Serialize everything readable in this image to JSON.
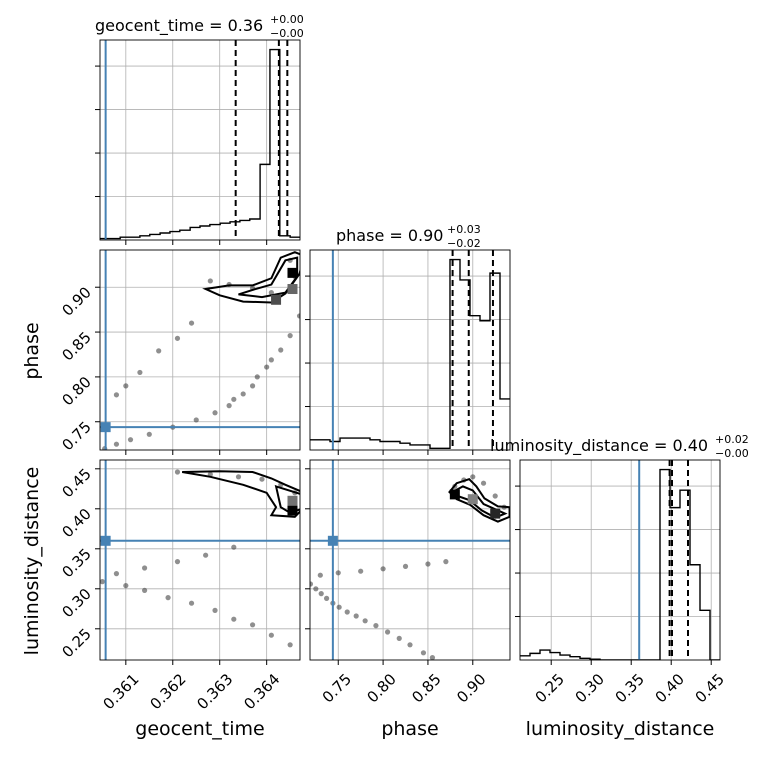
{
  "figure": {
    "titles": {
      "geocent_time": {
        "main": "geocent_time = 0.36",
        "sup": "+0.00",
        "sub": "−0.00"
      },
      "phase": {
        "main": "phase = 0.90",
        "sup": "+0.03",
        "sub": "−0.02"
      },
      "luminosity_distance": {
        "main": "luminosity_distance = 0.40",
        "sup": "+0.02",
        "sub": "−0.00"
      }
    },
    "axis_labels": {
      "geocent_time": "geocent_time",
      "phase": "phase",
      "luminosity_distance": "luminosity_distance"
    },
    "truth_color": "#4682b4"
  },
  "chart_data": {
    "type": "corner",
    "parameters": [
      {
        "name": "geocent_time",
        "range": [
          0.36045,
          0.36471
        ],
        "ticks": [
          0.361,
          0.362,
          0.363,
          0.364
        ],
        "tick_labels": [
          "0.361",
          "0.362",
          "0.363",
          "0.364"
        ],
        "truth": 0.36057,
        "quantiles": [
          0.36334,
          0.36426,
          0.36444
        ],
        "hist_edges": [
          0.36045,
          0.36066,
          0.36088,
          0.36109,
          0.3613,
          0.36151,
          0.36173,
          0.36194,
          0.36215,
          0.36237,
          0.36258,
          0.36279,
          0.36301,
          0.36322,
          0.36343,
          0.36364,
          0.36386,
          0.36407,
          0.36428,
          0.3645,
          0.36471
        ],
        "hist_counts": [
          1,
          1,
          2,
          2,
          3,
          4,
          5,
          6,
          7,
          9,
          10,
          11,
          12,
          13,
          14,
          15,
          54,
          136,
          3,
          2
        ]
      },
      {
        "name": "phase",
        "range": [
          0.7185,
          0.9415
        ],
        "ticks": [
          0.75,
          0.8,
          0.85,
          0.9
        ],
        "tick_labels": [
          "0.75",
          "0.80",
          "0.85",
          "0.90"
        ],
        "truth": 0.744,
        "quantiles": [
          0.8775,
          0.8955,
          0.9225
        ],
        "hist_edges": [
          0.7185,
          0.72965,
          0.7408,
          0.75195,
          0.7631,
          0.77425,
          0.7854,
          0.79655,
          0.8077,
          0.81885,
          0.83,
          0.84115,
          0.8523,
          0.86345,
          0.8746,
          0.88575,
          0.8969,
          0.90805,
          0.9192,
          0.93035,
          0.9415
        ],
        "hist_counts": [
          6,
          6,
          5,
          7,
          7,
          7,
          6,
          5,
          5,
          4,
          3,
          3,
          1,
          1,
          112,
          100,
          79,
          76,
          104,
          30
        ]
      },
      {
        "name": "luminosity_distance",
        "range": [
          0.211,
          0.461
        ],
        "ticks": [
          0.25,
          0.3,
          0.35,
          0.4,
          0.45
        ],
        "tick_labels": [
          "0.25",
          "0.30",
          "0.35",
          "0.40",
          "0.45"
        ],
        "truth": 0.36,
        "quantiles": [
          0.398,
          0.401,
          0.421
        ],
        "hist_edges": [
          0.211,
          0.2235,
          0.236,
          0.2485,
          0.261,
          0.2735,
          0.286,
          0.2985,
          0.311,
          0.3235,
          0.336,
          0.3485,
          0.361,
          0.3735,
          0.386,
          0.3985,
          0.411,
          0.4235,
          0.436,
          0.4485,
          0.461
        ],
        "hist_counts": [
          5,
          8,
          12,
          9,
          6,
          4,
          2,
          1,
          0,
          0,
          0,
          0,
          0,
          0,
          230,
          184,
          205,
          115,
          60,
          0
        ]
      }
    ],
    "joint": [
      {
        "x": "geocent_time",
        "y": "phase",
        "samples": [
          [
            0.36055,
            0.72
          ],
          [
            0.3608,
            0.725
          ],
          [
            0.3611,
            0.73
          ],
          [
            0.3615,
            0.736
          ],
          [
            0.362,
            0.744
          ],
          [
            0.3625,
            0.752
          ],
          [
            0.3629,
            0.76
          ],
          [
            0.3632,
            0.768
          ],
          [
            0.3633,
            0.775
          ],
          [
            0.3635,
            0.781
          ],
          [
            0.3637,
            0.79
          ],
          [
            0.3638,
            0.8
          ],
          [
            0.364,
            0.811
          ],
          [
            0.3641,
            0.819
          ],
          [
            0.3643,
            0.83
          ],
          [
            0.3645,
            0.846
          ],
          [
            0.3647,
            0.868
          ],
          [
            0.3648,
            0.89
          ],
          [
            0.3646,
            0.912
          ],
          [
            0.3645,
            0.93
          ],
          [
            0.3628,
            0.907
          ],
          [
            0.3632,
            0.903
          ],
          [
            0.3637,
            0.899
          ],
          [
            0.3641,
            0.894
          ],
          [
            0.361,
            0.79
          ],
          [
            0.3608,
            0.78
          ],
          [
            0.3613,
            0.805
          ],
          [
            0.3617,
            0.829
          ],
          [
            0.3621,
            0.843
          ],
          [
            0.3624,
            0.86
          ]
        ],
        "contours": [
          [
            [
              0.3643,
              0.933
            ],
            [
              0.3646,
              0.939
            ],
            [
              0.3648,
              0.935
            ],
            [
              0.3647,
              0.915
            ],
            [
              0.3644,
              0.893
            ],
            [
              0.3641,
              0.883
            ],
            [
              0.3635,
              0.884
            ],
            [
              0.363,
              0.891
            ],
            [
              0.3627,
              0.898
            ],
            [
              0.3632,
              0.902
            ],
            [
              0.3637,
              0.902
            ],
            [
              0.3641,
              0.91
            ],
            [
              0.3643,
              0.933
            ]
          ],
          [
            [
              0.3644,
              0.93
            ],
            [
              0.36465,
              0.933
            ],
            [
              0.36465,
              0.912
            ],
            [
              0.3644,
              0.894
            ],
            [
              0.3639,
              0.889
            ],
            [
              0.3634,
              0.892
            ],
            [
              0.3637,
              0.897
            ],
            [
              0.3641,
              0.903
            ],
            [
              0.3644,
              0.93
            ]
          ]
        ],
        "dense_bins": [
          [
            0.36455,
            0.916,
            0.0
          ],
          [
            0.36455,
            0.898,
            0.4
          ],
          [
            0.3642,
            0.886,
            0.3
          ]
        ]
      },
      {
        "x": "geocent_time",
        "y": "luminosity_distance",
        "samples": [
          [
            0.3605,
            0.309
          ],
          [
            0.361,
            0.304
          ],
          [
            0.3614,
            0.298
          ],
          [
            0.3619,
            0.289
          ],
          [
            0.3624,
            0.282
          ],
          [
            0.3629,
            0.273
          ],
          [
            0.3633,
            0.262
          ],
          [
            0.3637,
            0.255
          ],
          [
            0.3641,
            0.242
          ],
          [
            0.3645,
            0.23
          ],
          [
            0.3648,
            0.214
          ],
          [
            0.3608,
            0.319
          ],
          [
            0.3614,
            0.326
          ],
          [
            0.3621,
            0.334
          ],
          [
            0.3627,
            0.342
          ],
          [
            0.3633,
            0.352
          ],
          [
            0.3621,
            0.446
          ],
          [
            0.3628,
            0.443
          ],
          [
            0.3634,
            0.44
          ],
          [
            0.3639,
            0.437
          ],
          [
            0.3643,
            0.43
          ],
          [
            0.3646,
            0.42
          ],
          [
            0.3648,
            0.408
          ]
        ],
        "contours": [
          [
            [
              0.3622,
              0.446
            ],
            [
              0.363,
              0.447
            ],
            [
              0.3637,
              0.446
            ],
            [
              0.3641,
              0.438
            ],
            [
              0.3644,
              0.43
            ],
            [
              0.3648,
              0.42
            ],
            [
              0.3648,
              0.402
            ],
            [
              0.3646,
              0.39
            ],
            [
              0.3641,
              0.392
            ],
            [
              0.3642,
              0.402
            ],
            [
              0.364,
              0.42
            ],
            [
              0.3635,
              0.43
            ],
            [
              0.3628,
              0.44
            ],
            [
              0.3622,
              0.446
            ]
          ],
          [
            [
              0.3642,
              0.428
            ],
            [
              0.36475,
              0.418
            ],
            [
              0.36475,
              0.4
            ],
            [
              0.3645,
              0.395
            ],
            [
              0.3643,
              0.402
            ],
            [
              0.3642,
              0.428
            ]
          ]
        ],
        "dense_bins": [
          [
            0.36455,
            0.398,
            0.0
          ],
          [
            0.36455,
            0.41,
            0.45
          ]
        ]
      },
      {
        "x": "phase",
        "y": "luminosity_distance",
        "samples": [
          [
            0.719,
            0.306
          ],
          [
            0.725,
            0.3
          ],
          [
            0.731,
            0.294
          ],
          [
            0.737,
            0.288
          ],
          [
            0.744,
            0.282
          ],
          [
            0.751,
            0.277
          ],
          [
            0.76,
            0.271
          ],
          [
            0.77,
            0.266
          ],
          [
            0.78,
            0.26
          ],
          [
            0.792,
            0.254
          ],
          [
            0.805,
            0.246
          ],
          [
            0.818,
            0.238
          ],
          [
            0.83,
            0.23
          ],
          [
            0.845,
            0.22
          ],
          [
            0.855,
            0.214
          ],
          [
            0.73,
            0.317
          ],
          [
            0.75,
            0.32
          ],
          [
            0.775,
            0.322
          ],
          [
            0.8,
            0.325
          ],
          [
            0.825,
            0.328
          ],
          [
            0.85,
            0.331
          ],
          [
            0.87,
            0.334
          ],
          [
            0.88,
            0.428
          ],
          [
            0.89,
            0.436
          ],
          [
            0.9,
            0.44
          ],
          [
            0.912,
            0.432
          ],
          [
            0.925,
            0.416
          ],
          [
            0.935,
            0.402
          ]
        ],
        "contours": [
          [
            [
              0.874,
              0.421
            ],
            [
              0.882,
              0.432
            ],
            [
              0.896,
              0.437
            ],
            [
              0.904,
              0.428
            ],
            [
              0.913,
              0.413
            ],
            [
              0.928,
              0.403
            ],
            [
              0.941,
              0.402
            ],
            [
              0.941,
              0.39
            ],
            [
              0.928,
              0.384
            ],
            [
              0.912,
              0.392
            ],
            [
              0.897,
              0.405
            ],
            [
              0.882,
              0.412
            ],
            [
              0.874,
              0.421
            ]
          ],
          [
            [
              0.879,
              0.422
            ],
            [
              0.889,
              0.428
            ],
            [
              0.9,
              0.423
            ],
            [
              0.912,
              0.406
            ],
            [
              0.928,
              0.398
            ],
            [
              0.936,
              0.394
            ],
            [
              0.925,
              0.389
            ],
            [
              0.91,
              0.398
            ],
            [
              0.896,
              0.411
            ],
            [
              0.883,
              0.416
            ],
            [
              0.879,
              0.422
            ]
          ]
        ],
        "dense_bins": [
          [
            0.88,
            0.418,
            0.0
          ],
          [
            0.925,
            0.394,
            0.15
          ],
          [
            0.9,
            0.412,
            0.5
          ]
        ]
      }
    ]
  }
}
